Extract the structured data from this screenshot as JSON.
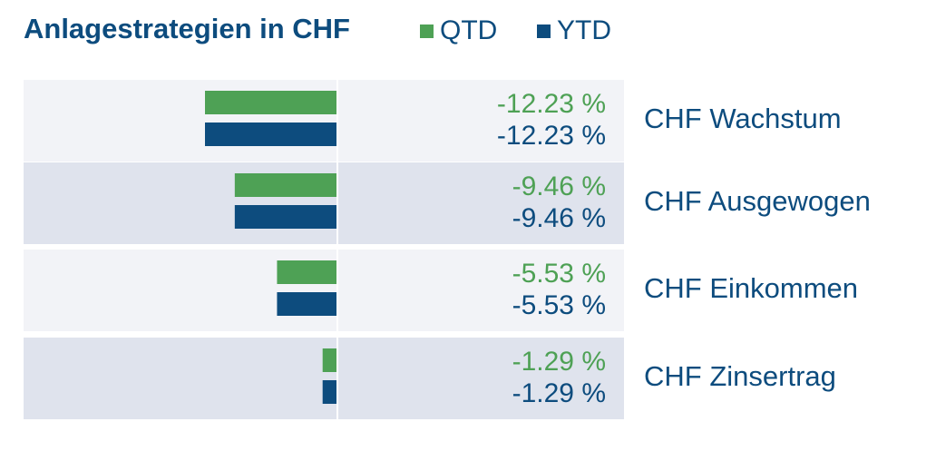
{
  "chart_data": {
    "type": "bar",
    "orientation": "horizontal",
    "title": "Anlagestrategien in CHF",
    "categories": [
      "CHF Wachstum",
      "CHF Ausgewogen",
      "CHF Einkommen",
      "CHF Zinsertrag"
    ],
    "series": [
      {
        "name": "QTD",
        "values": [
          -12.23,
          -9.46,
          -5.53,
          -1.29
        ],
        "labels": [
          "-12.23 %",
          "-9.46 %",
          "-5.53 %",
          "-1.29 %"
        ]
      },
      {
        "name": "YTD",
        "values": [
          -12.23,
          -9.46,
          -5.53,
          -1.29
        ],
        "labels": [
          "-12.23 %",
          "-9.46 %",
          "-5.53 %",
          "-1.29 %"
        ]
      }
    ],
    "xlim": [
      -12.23,
      0
    ],
    "grid": false,
    "legend": "top"
  },
  "colors": {
    "qtd": "#4ea155",
    "ytd": "#0d4c7e",
    "row_light": "#f2f3f7",
    "row_dark": "#dfe3ed"
  }
}
